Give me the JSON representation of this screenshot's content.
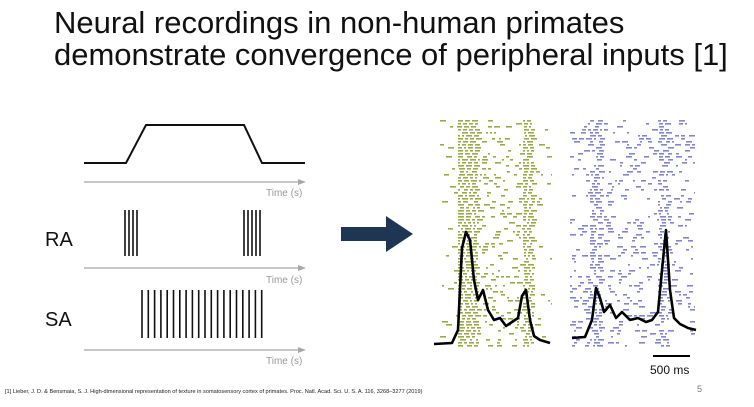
{
  "slide": {
    "title_line1": "Neural recordings in non-human primates",
    "title_line2": "demonstrate convergence of peripheral inputs [1]",
    "footnote": "[1] Lieber, J. D. & Bensmaia, S. J. High-dimensional representation of texture in somatosensory cortex of primates. Proc. Natl. Acad. Sci. U. S. A. 116, 3268–3277 (2019)",
    "page_number": "5"
  },
  "diagram": {
    "axis_label": "Time (s)",
    "ra_label": "RA",
    "sa_label": "SA",
    "scale_bar_label": "500 ms",
    "colors": {
      "raster_left": "#8a9a2a",
      "raster_right": "#6e6ec8",
      "arrow": "#1e3554",
      "axis": "#a8a8a8"
    }
  }
}
